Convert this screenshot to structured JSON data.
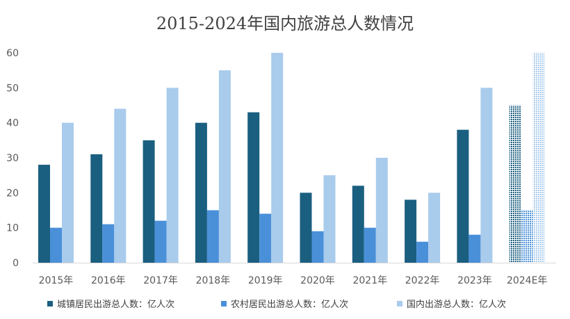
{
  "chart_data": {
    "type": "bar",
    "title": "2015-2024年国内旅游总人数情况",
    "categories": [
      "2015年",
      "2016年",
      "2017年",
      "2018年",
      "2019年",
      "2020年",
      "2021年",
      "2022年",
      "2023年",
      "2024E年"
    ],
    "series": [
      {
        "name": "城镇居民出游总人数：亿人次",
        "color": "#1b5f80",
        "values": [
          28,
          31,
          35,
          40,
          43,
          20,
          22,
          18,
          38,
          45
        ]
      },
      {
        "name": "农村居民出游总人数：亿人次",
        "color": "#4a90d9",
        "values": [
          10,
          11,
          12,
          15,
          14,
          9,
          10,
          6,
          8,
          15
        ]
      },
      {
        "name": "国内出游总人数：亿人次",
        "color": "#a9cbec",
        "values": [
          40,
          44,
          50,
          55,
          60,
          25,
          30,
          20,
          50,
          60
        ]
      }
    ],
    "estimate_categories": [
      "2024E年"
    ],
    "ylim": [
      0,
      60
    ],
    "yticks": [
      0,
      10,
      20,
      30,
      40,
      50,
      60
    ],
    "grid": false,
    "legend_position": "bottom"
  }
}
